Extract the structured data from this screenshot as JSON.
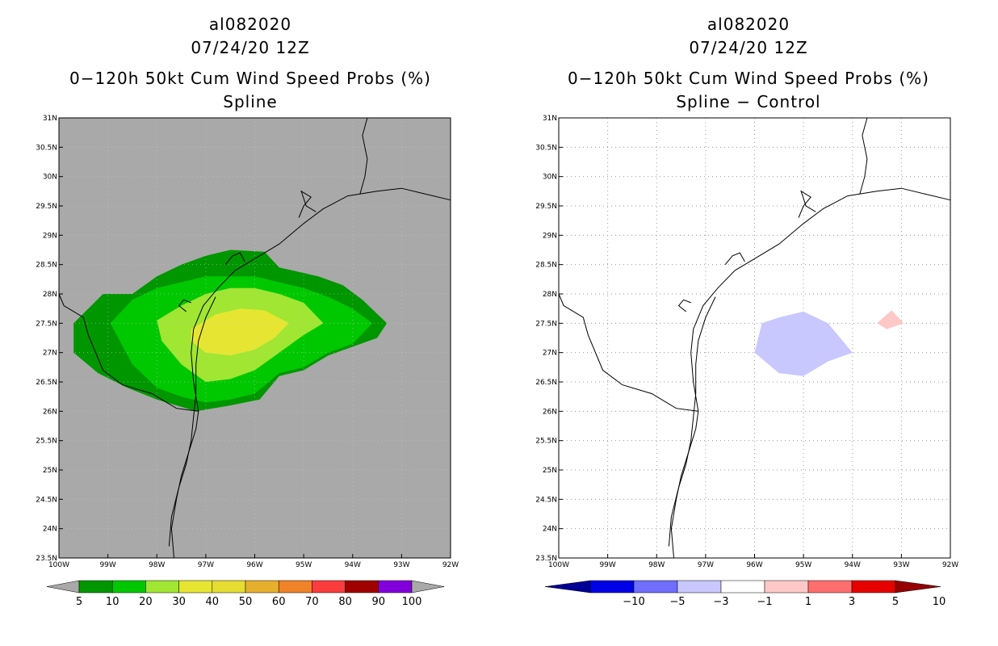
{
  "charts": [
    {
      "storm_id": "al082020",
      "datetime": "07/24/20 12Z",
      "title": "0−120h 50kt Cum Wind Speed Probs (%)",
      "subtitle": "Spline"
    },
    {
      "storm_id": "al082020",
      "datetime": "07/24/20 12Z",
      "title": "0−120h 50kt Cum Wind Speed Probs (%)",
      "subtitle": "Spline − Control"
    }
  ],
  "chart_data": [
    {
      "type": "heatmap",
      "title": "0−120h 50kt Cum Wind Speed Probs (%)",
      "subtitle": "Spline",
      "x_range": [
        -100,
        -92
      ],
      "y_range": [
        23.5,
        31
      ],
      "x_ticks": [
        "100W",
        "99W",
        "98W",
        "97W",
        "96W",
        "95W",
        "94W",
        "93W",
        "92W"
      ],
      "y_ticks": [
        "23.5N",
        "24N",
        "24.5N",
        "25N",
        "25.5N",
        "26N",
        "26.5N",
        "27N",
        "27.5N",
        "28N",
        "28.5N",
        "29N",
        "29.5N",
        "30N",
        "30.5N",
        "31N"
      ],
      "background_color": "#a9a9a9",
      "contours": [
        {
          "level": 5,
          "color": "#009600",
          "polygon": [
            [
              -98.5,
              28.0
            ],
            [
              -98.0,
              28.3
            ],
            [
              -97.5,
              28.5
            ],
            [
              -97.0,
              28.65
            ],
            [
              -96.5,
              28.75
            ],
            [
              -95.8,
              28.72
            ],
            [
              -95.5,
              28.45
            ],
            [
              -94.7,
              28.3
            ],
            [
              -94.2,
              28.15
            ],
            [
              -93.8,
              27.9
            ],
            [
              -93.3,
              27.5
            ],
            [
              -93.5,
              27.25
            ],
            [
              -94.0,
              27.1
            ],
            [
              -94.5,
              26.95
            ],
            [
              -95.0,
              26.7
            ],
            [
              -95.5,
              26.6
            ],
            [
              -95.9,
              26.2
            ],
            [
              -96.5,
              26.1
            ],
            [
              -97.2,
              26.0
            ],
            [
              -98.0,
              26.2
            ],
            [
              -98.6,
              26.4
            ],
            [
              -99.2,
              26.65
            ],
            [
              -99.7,
              27.0
            ],
            [
              -99.7,
              27.5
            ],
            [
              -99.1,
              28.0
            ],
            [
              -98.5,
              28.0
            ]
          ]
        },
        {
          "level": 10,
          "color": "#00c800",
          "polygon": [
            [
              -98.5,
              27.9
            ],
            [
              -98.0,
              28.1
            ],
            [
              -97.5,
              28.2
            ],
            [
              -97.0,
              28.3
            ],
            [
              -96.5,
              28.3
            ],
            [
              -96.0,
              28.3
            ],
            [
              -95.5,
              28.2
            ],
            [
              -95.0,
              28.1
            ],
            [
              -94.5,
              27.95
            ],
            [
              -94.0,
              27.75
            ],
            [
              -93.6,
              27.5
            ],
            [
              -94.0,
              27.15
            ],
            [
              -94.5,
              27.0
            ],
            [
              -95.0,
              26.75
            ],
            [
              -95.5,
              26.65
            ],
            [
              -96.0,
              26.3
            ],
            [
              -96.5,
              26.2
            ],
            [
              -97.0,
              26.15
            ],
            [
              -97.5,
              26.25
            ],
            [
              -98.0,
              26.4
            ],
            [
              -98.5,
              26.8
            ],
            [
              -98.95,
              27.5
            ],
            [
              -98.5,
              27.9
            ]
          ]
        },
        {
          "level": 20,
          "color": "#a0e632",
          "polygon": [
            [
              -98.0,
              27.55
            ],
            [
              -97.5,
              27.8
            ],
            [
              -97.0,
              28.0
            ],
            [
              -96.5,
              28.1
            ],
            [
              -96.0,
              28.1
            ],
            [
              -95.5,
              28.0
            ],
            [
              -95.0,
              27.85
            ],
            [
              -94.6,
              27.5
            ],
            [
              -95.0,
              27.3
            ],
            [
              -95.5,
              27.0
            ],
            [
              -96.0,
              26.7
            ],
            [
              -96.5,
              26.55
            ],
            [
              -97.0,
              26.5
            ],
            [
              -97.5,
              26.8
            ],
            [
              -97.9,
              27.2
            ],
            [
              -98.0,
              27.55
            ]
          ]
        },
        {
          "level": 30,
          "color": "#e6e632",
          "polygon": [
            [
              -97.3,
              27.4
            ],
            [
              -96.8,
              27.65
            ],
            [
              -96.3,
              27.75
            ],
            [
              -95.8,
              27.72
            ],
            [
              -95.3,
              27.5
            ],
            [
              -95.6,
              27.25
            ],
            [
              -96.0,
              27.05
            ],
            [
              -96.5,
              26.95
            ],
            [
              -97.0,
              27.0
            ],
            [
              -97.3,
              27.2
            ],
            [
              -97.3,
              27.4
            ]
          ]
        }
      ],
      "colorbar": {
        "labels": [
          "5",
          "10",
          "20",
          "30",
          "40",
          "50",
          "60",
          "70",
          "80",
          "90",
          "100"
        ],
        "colors": [
          "#009600",
          "#00c800",
          "#a0e632",
          "#e6e632",
          "#e6dc32",
          "#e6af2d",
          "#f08228",
          "#fa3c3c",
          "#a00000",
          "#8200dc"
        ],
        "under_color": "#a9a9a9",
        "over_color": "#a9a9a9"
      }
    },
    {
      "type": "heatmap",
      "title": "0−120h 50kt Cum Wind Speed Probs (%)",
      "subtitle": "Spline − Control",
      "x_range": [
        -100,
        -92
      ],
      "y_range": [
        23.5,
        31
      ],
      "x_ticks": [
        "100W",
        "99W",
        "98W",
        "97W",
        "96W",
        "95W",
        "94W",
        "93W",
        "92W"
      ],
      "y_ticks": [
        "23.5N",
        "24N",
        "24.5N",
        "25N",
        "25.5N",
        "26N",
        "26.5N",
        "27N",
        "27.5N",
        "28N",
        "28.5N",
        "29N",
        "29.5N",
        "30N",
        "30.5N",
        "31N"
      ],
      "background_color": "#ffffff",
      "grid": true,
      "contours": [
        {
          "level": -3,
          "color": "#c8c8ff",
          "polygon": [
            [
              -95.85,
              27.5
            ],
            [
              -95.5,
              27.6
            ],
            [
              -95.0,
              27.7
            ],
            [
              -94.5,
              27.5
            ],
            [
              -94.0,
              27.0
            ],
            [
              -94.5,
              26.85
            ],
            [
              -95.0,
              26.6
            ],
            [
              -95.5,
              26.65
            ],
            [
              -96.0,
              27.0
            ],
            [
              -95.85,
              27.5
            ]
          ]
        },
        {
          "level": 1,
          "color": "#ffc8c8",
          "polygon": [
            [
              -93.5,
              27.5
            ],
            [
              -93.2,
              27.72
            ],
            [
              -92.95,
              27.5
            ],
            [
              -93.3,
              27.4
            ],
            [
              -93.5,
              27.5
            ]
          ]
        }
      ],
      "colorbar": {
        "labels": [
          "−10",
          "−5",
          "−3",
          "−1",
          "1",
          "3",
          "5",
          "10"
        ],
        "colors": [
          "#0000e6",
          "#6e6eff",
          "#c8c8ff",
          "#ffffff",
          "#ffc8c8",
          "#ff6e6e",
          "#e60000"
        ],
        "under_color": "#000096",
        "over_color": "#960000"
      }
    }
  ],
  "coastline": {
    "texas_coast": [
      [
        -97.65,
        23.5
      ],
      [
        -97.7,
        24.0
      ],
      [
        -97.6,
        24.5
      ],
      [
        -97.5,
        24.9
      ],
      [
        -97.35,
        25.3
      ],
      [
        -97.2,
        25.7
      ],
      [
        -97.15,
        26.0
      ],
      [
        -97.25,
        26.5
      ],
      [
        -97.3,
        27.0
      ],
      [
        -97.25,
        27.4
      ],
      [
        -97.05,
        27.8
      ],
      [
        -96.75,
        28.1
      ],
      [
        -96.4,
        28.4
      ],
      [
        -96.0,
        28.6
      ],
      [
        -95.5,
        28.85
      ],
      [
        -95.0,
        29.2
      ],
      [
        -94.6,
        29.45
      ],
      [
        -94.1,
        29.67
      ],
      [
        -93.5,
        29.75
      ],
      [
        -93.0,
        29.8
      ],
      [
        -92.5,
        29.7
      ],
      [
        -92.0,
        29.6
      ]
    ],
    "louisiana_border": [
      [
        -93.7,
        31.0
      ],
      [
        -93.8,
        30.7
      ],
      [
        -93.7,
        30.3
      ],
      [
        -93.75,
        30.0
      ],
      [
        -93.85,
        29.7
      ]
    ],
    "mexico_border": [
      [
        -97.15,
        26.0
      ],
      [
        -97.6,
        26.05
      ],
      [
        -98.1,
        26.3
      ],
      [
        -98.7,
        26.45
      ],
      [
        -99.1,
        26.7
      ],
      [
        -99.4,
        27.3
      ],
      [
        -99.5,
        27.6
      ],
      [
        -99.9,
        27.8
      ],
      [
        -100.0,
        28.0
      ]
    ],
    "padre_island": [
      [
        -97.75,
        23.7
      ],
      [
        -97.7,
        24.2
      ],
      [
        -97.55,
        24.7
      ],
      [
        -97.4,
        25.1
      ],
      [
        -97.3,
        25.5
      ],
      [
        -97.25,
        25.9
      ],
      [
        -97.2,
        26.3
      ],
      [
        -97.2,
        26.8
      ],
      [
        -97.15,
        27.2
      ],
      [
        -97.0,
        27.6
      ],
      [
        -96.8,
        27.95
      ]
    ],
    "bays": [
      [
        [
          -95.1,
          29.3
        ],
        [
          -95.0,
          29.5
        ],
        [
          -94.85,
          29.65
        ],
        [
          -95.05,
          29.75
        ],
        [
          -94.95,
          29.5
        ],
        [
          -94.75,
          29.4
        ]
      ],
      [
        [
          -96.6,
          28.5
        ],
        [
          -96.45,
          28.65
        ],
        [
          -96.3,
          28.7
        ],
        [
          -96.2,
          28.55
        ]
      ],
      [
        [
          -97.4,
          27.7
        ],
        [
          -97.55,
          27.8
        ],
        [
          -97.45,
          27.9
        ],
        [
          -97.3,
          27.85
        ]
      ]
    ]
  }
}
